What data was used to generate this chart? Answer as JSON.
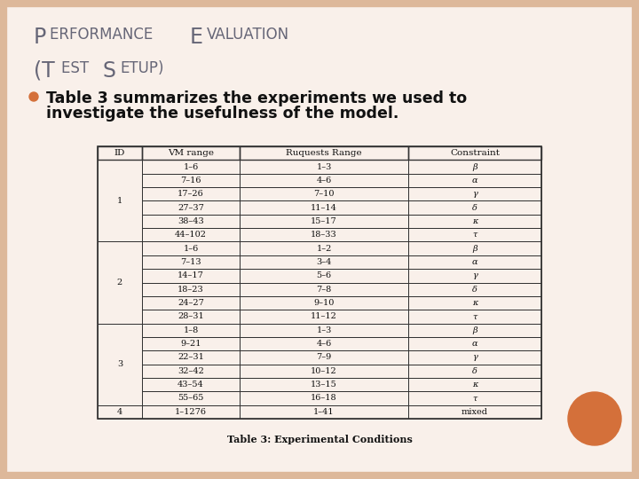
{
  "title_line1_upper": "P",
  "title_line1_small": "ERFORMANCE ",
  "title_line1_upper2": "E",
  "title_line1_small2": "VALUATION",
  "title_line2_upper": "(T",
  "title_line2_small": "EST ",
  "title_line2_upper2": "S",
  "title_line2_small2": "ETUP)",
  "bullet_text_line1": "Table 3 summarizes the experiments we used to",
  "bullet_text_line2": "investigate the usefulness of the model.",
  "table_caption": "Table 3: Experimental Conditions",
  "table_headers": [
    "ID",
    "VM range",
    "Ruquests Range",
    "Constraint"
  ],
  "table_data_vm": [
    "1–6",
    "7–16",
    "17–26",
    "27–37",
    "38–43",
    "44–102",
    "1–6",
    "7–13",
    "14–17",
    "18–23",
    "24–27",
    "28–31",
    "1–8",
    "9–21",
    "22–31",
    "32–42",
    "43–54",
    "55–65",
    "1–1276"
  ],
  "table_data_req": [
    "1–3",
    "4–6",
    "7–10",
    "11–14",
    "15–17",
    "18–33",
    "1–2",
    "3–4",
    "5–6",
    "7–8",
    "9–10",
    "11–12",
    "1–3",
    "4–6",
    "7–9",
    "10–12",
    "13–15",
    "16–18",
    "1–41"
  ],
  "table_data_con": [
    "β",
    "α",
    "γ",
    "δ",
    "κ",
    "τ",
    "β",
    "α",
    "γ",
    "δ",
    "κ",
    "τ",
    "β",
    "α",
    "γ",
    "δ",
    "κ",
    "τ",
    "mixed"
  ],
  "id_groups": [
    [
      0,
      5,
      "1"
    ],
    [
      6,
      11,
      "2"
    ],
    [
      12,
      17,
      "3"
    ],
    [
      18,
      18,
      "4"
    ]
  ],
  "bg_color": "#f9f0ea",
  "border_color": "#ddb89a",
  "title_color": "#666677",
  "bullet_color": "#d4703a",
  "text_color": "#111111",
  "table_font_size": 7.0,
  "title_large_size": 17,
  "title_small_size": 12,
  "bullet_font_size": 12.5,
  "caption_font_size": 8.0
}
